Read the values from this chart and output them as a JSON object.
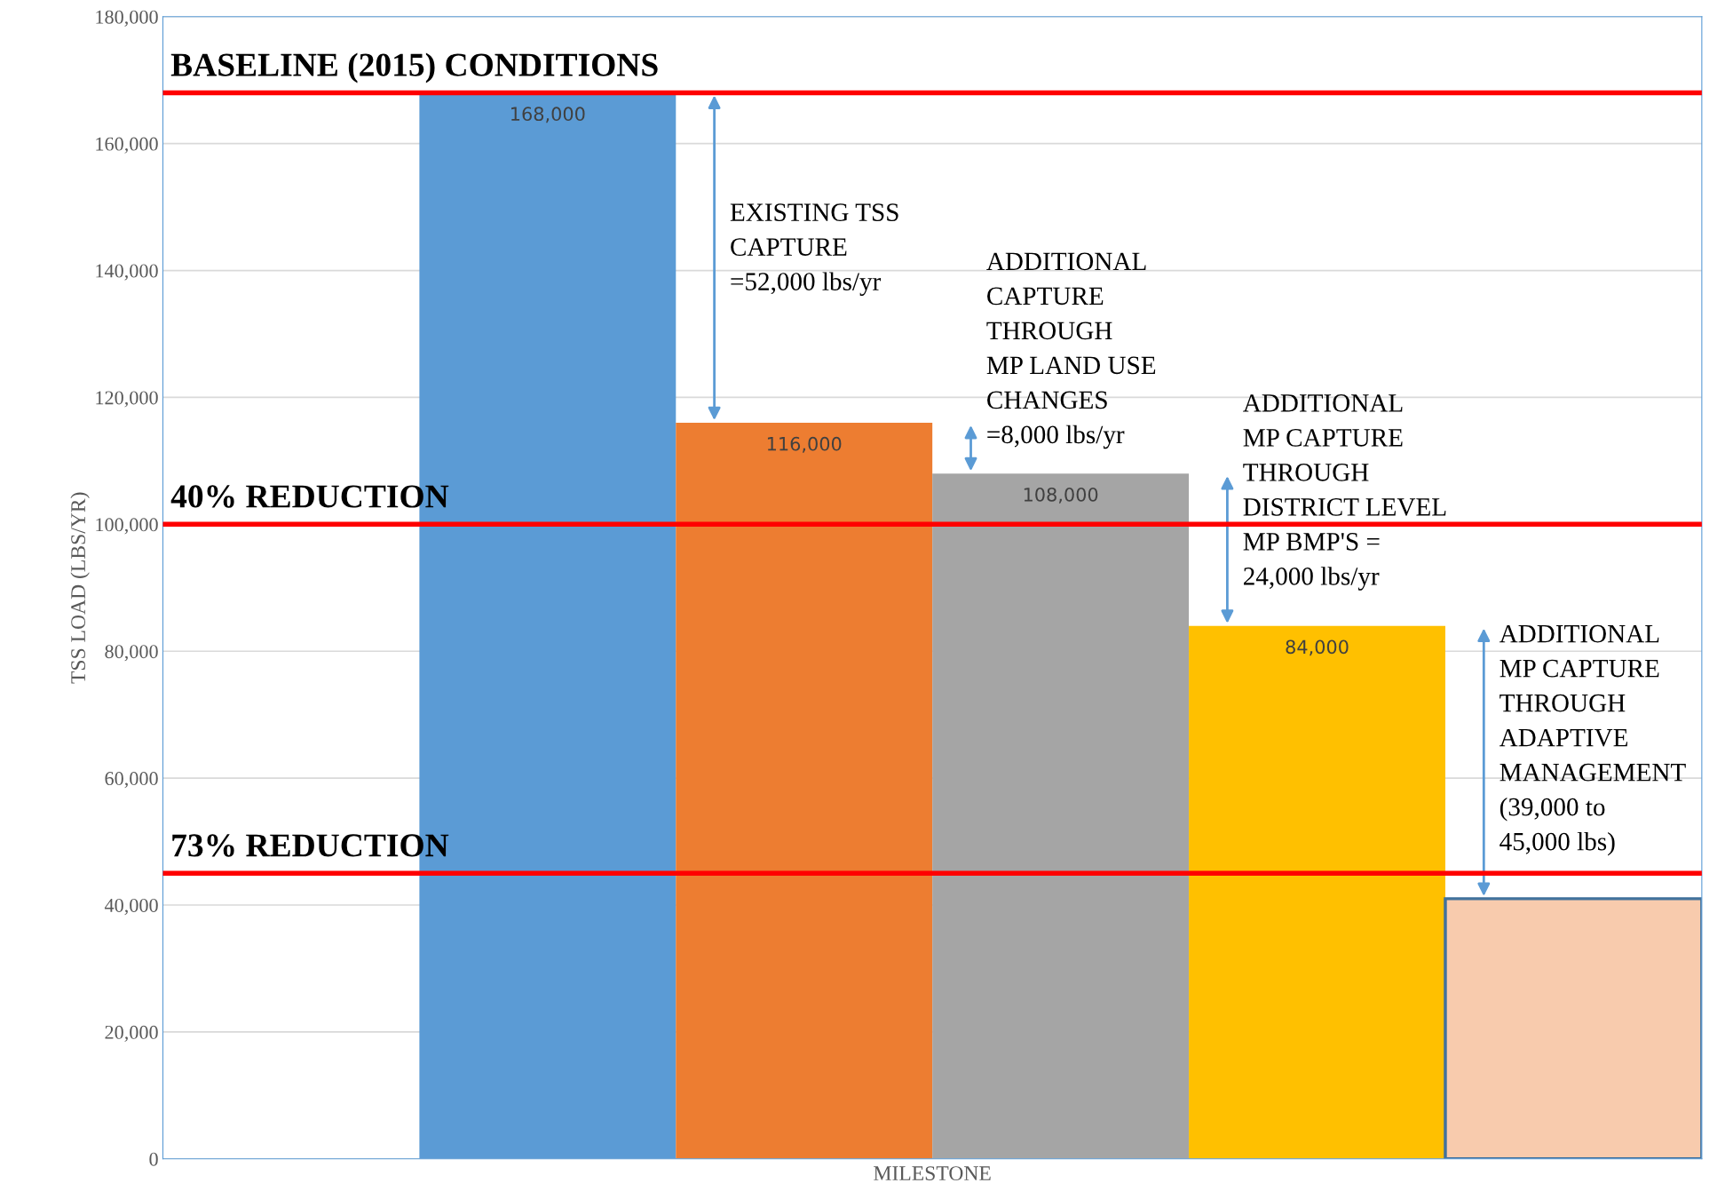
{
  "chart_data": {
    "type": "bar",
    "xlabel": "MILESTONE",
    "ylabel": "TSS LOAD (LBS/YR)",
    "categories": [
      null,
      null,
      null,
      null,
      null,
      null
    ],
    "values": [
      null,
      168000,
      116000,
      108000,
      84000,
      41000
    ],
    "colors": [
      null,
      "#5b9bd5",
      "#ed7d31",
      "#a5a5a5",
      "#ffc000",
      "#f8cbad"
    ],
    "value_labels": [
      null,
      "168,000",
      "116,000",
      "108,000",
      "84,000",
      null
    ],
    "ylim": [
      0,
      180000
    ],
    "yticks": [
      {
        "value": 0,
        "label": "0"
      },
      {
        "value": 20000,
        "label": "20,000"
      },
      {
        "value": 40000,
        "label": "40,000"
      },
      {
        "value": 60000,
        "label": "60,000"
      },
      {
        "value": 80000,
        "label": "80,000"
      },
      {
        "value": 100000,
        "label": "100,000"
      },
      {
        "value": 120000,
        "label": "120,000"
      },
      {
        "value": 140000,
        "label": "140,000"
      },
      {
        "value": 160000,
        "label": "160,000"
      },
      {
        "value": 180000,
        "label": "180,000"
      }
    ],
    "grid": "y",
    "ref_lines": [
      {
        "axis": "y",
        "value": 168000,
        "label": "BASELINE (2015) CONDITIONS",
        "color": "#ff0000"
      },
      {
        "axis": "y",
        "value": 100000,
        "label": "40% REDUCTION",
        "color": "#ff0000"
      },
      {
        "axis": "y",
        "value": 45000,
        "label": "73% REDUCTION",
        "color": "#ff0000"
      }
    ],
    "annotations": [
      "EXISTING TSS\nCAPTURE\n=52,000 lbs/yr",
      "ADDITIONAL\nCAPTURE\nTHROUGH\nMP LAND USE\nCHANGES\n=8,000 lbs/yr",
      "ADDITIONAL\nMP CAPTURE\nTHROUGH\nDISTRICT LEVEL\nMP BMP'S =\n24,000 lbs/yr",
      "ADDITIONAL\nMP CAPTURE\nTHROUGH\nADAPTIVE\nMANAGEMENT\n(39,000 to\n45,000 lbs)"
    ]
  }
}
